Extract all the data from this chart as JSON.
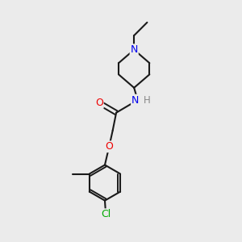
{
  "background_color": "#ebebeb",
  "bond_color": "#1a1a1a",
  "atom_colors": {
    "N": "#0000ee",
    "O": "#ee0000",
    "Cl": "#00aa00",
    "C": "#1a1a1a",
    "H": "#888888",
    "NH": "#0000ee"
  },
  "figsize": [
    3.0,
    3.0
  ],
  "dpi": 100
}
